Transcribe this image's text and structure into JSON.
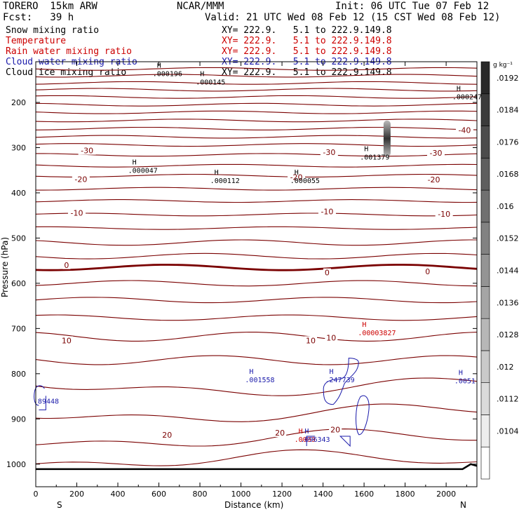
{
  "header": {
    "model": "TORERO  15km ARW",
    "org": "NCAR/MMM",
    "init": "Init: 06 UTC Tue 07 Feb 12",
    "fcst": "Fcst:   39 h",
    "valid": "Valid: 21 UTC Wed 08 Feb 12 (15 CST Wed 08 Feb 12)"
  },
  "legend": [
    {
      "name": "Snow mixing ratio",
      "xy": "XY= 222.9.   5.1 to 222.9.149.8",
      "color": "#000000"
    },
    {
      "name": "Temperature",
      "xy": "XY= 222.9.   5.1 to 222.9.149.8",
      "color": "#cc0000"
    },
    {
      "name": "Rain water mixing ratio",
      "xy": "XY= 222.9.   5.1 to 222.9.149.8",
      "color": "#cc0000"
    },
    {
      "name": "Cloud water mixing ratio",
      "xy": "XY= 222.9.   5.1 to 222.9.149.8",
      "color": "#1a1aaa"
    },
    {
      "name": "Cloud ice mixing ratio",
      "xy": "XY= 222.9.   5.1 to 222.9.149.8",
      "color": "#000000"
    }
  ],
  "chart_data": {
    "type": "contour-cross-section",
    "xlabel": "Distance (km)",
    "ylabel": "Pressure (hPa)",
    "xlim": [
      0,
      2150
    ],
    "ylim": [
      1050,
      110
    ],
    "x_ticks": [
      "0",
      "200",
      "400",
      "600",
      "800",
      "1000",
      "1200",
      "1400",
      "1600",
      "1800",
      "2000"
    ],
    "x_tick_values": [
      0,
      200,
      400,
      600,
      800,
      1000,
      1200,
      1400,
      1600,
      1800,
      2000
    ],
    "y_ticks": [
      "200",
      "300",
      "400",
      "500",
      "600",
      "700",
      "800",
      "900",
      "1000"
    ],
    "y_tick_values": [
      200,
      300,
      400,
      500,
      600,
      700,
      800,
      900,
      1000
    ],
    "ends": {
      "left": "S",
      "right": "N"
    },
    "colorbar": {
      "units": "g kg⁻¹",
      "levels": [
        ".0104",
        ".0112",
        ".012",
        ".0128",
        ".0136",
        ".0144",
        ".0152",
        ".016",
        ".0168",
        ".0176",
        ".0184",
        ".0192"
      ]
    },
    "temperature_labels": [
      {
        "text": "-30",
        "x": 250,
        "p": 308
      },
      {
        "text": "-30",
        "x": 1430,
        "p": 312
      },
      {
        "text": "-30",
        "x": 1950,
        "p": 313
      },
      {
        "text": "-40",
        "x": 2090,
        "p": 263
      },
      {
        "text": "-20",
        "x": 220,
        "p": 371
      },
      {
        "text": "-20",
        "x": 1270,
        "p": 367
      },
      {
        "text": "-20",
        "x": 1940,
        "p": 372
      },
      {
        "text": "-10",
        "x": 200,
        "p": 446
      },
      {
        "text": "-10",
        "x": 1420,
        "p": 443
      },
      {
        "text": "-10",
        "x": 1990,
        "p": 448
      },
      {
        "text": "0",
        "x": 150,
        "p": 561
      },
      {
        "text": "0",
        "x": 1420,
        "p": 578
      },
      {
        "text": "0",
        "x": 1910,
        "p": 575
      },
      {
        "text": "10",
        "x": 150,
        "p": 728
      },
      {
        "text": "10",
        "x": 1340,
        "p": 728
      },
      {
        "text": "10",
        "x": 1440,
        "p": 722
      },
      {
        "text": "20",
        "x": 640,
        "p": 937
      },
      {
        "text": "20",
        "x": 1190,
        "p": 932
      },
      {
        "text": "20",
        "x": 1460,
        "p": 925
      }
    ],
    "snow_maxima": [
      {
        "mark": "H",
        "value": ".000196",
        "x": 570,
        "p": 139
      },
      {
        "mark": "H",
        "value": ".000145",
        "x": 780,
        "p": 157
      },
      {
        "mark": "H",
        "value": ".000247",
        "x": 2030,
        "p": 190
      },
      {
        "mark": "H",
        "value": ".001379",
        "x": 1580,
        "p": 323
      },
      {
        "mark": "H",
        "value": ".000047",
        "x": 450,
        "p": 353
      },
      {
        "mark": "H",
        "value": ".000112",
        "x": 850,
        "p": 375
      },
      {
        "mark": "H",
        "value": ".000055",
        "x": 1240,
        "p": 375
      }
    ],
    "rain_maxima": [
      {
        "mark": "H",
        "value": ".00003827",
        "x": 1570,
        "p": 712
      },
      {
        "mark": "H",
        "value": ".0000",
        "x": 1260,
        "p": 948
      }
    ],
    "cloud_water_maxima": [
      {
        "mark": "H",
        "value": ".001558",
        "x": 1020,
        "p": 816
      },
      {
        "mark": "H",
        "value": ".247739",
        "x": 1410,
        "p": 816
      },
      {
        "mark": "H",
        "value": ".0051",
        "x": 2040,
        "p": 818
      },
      {
        "mark": "",
        "value": "89448",
        "x": 10,
        "p": 863
      },
      {
        "mark": "H",
        "value": ".096343",
        "x": 1290,
        "p": 948
      }
    ]
  }
}
